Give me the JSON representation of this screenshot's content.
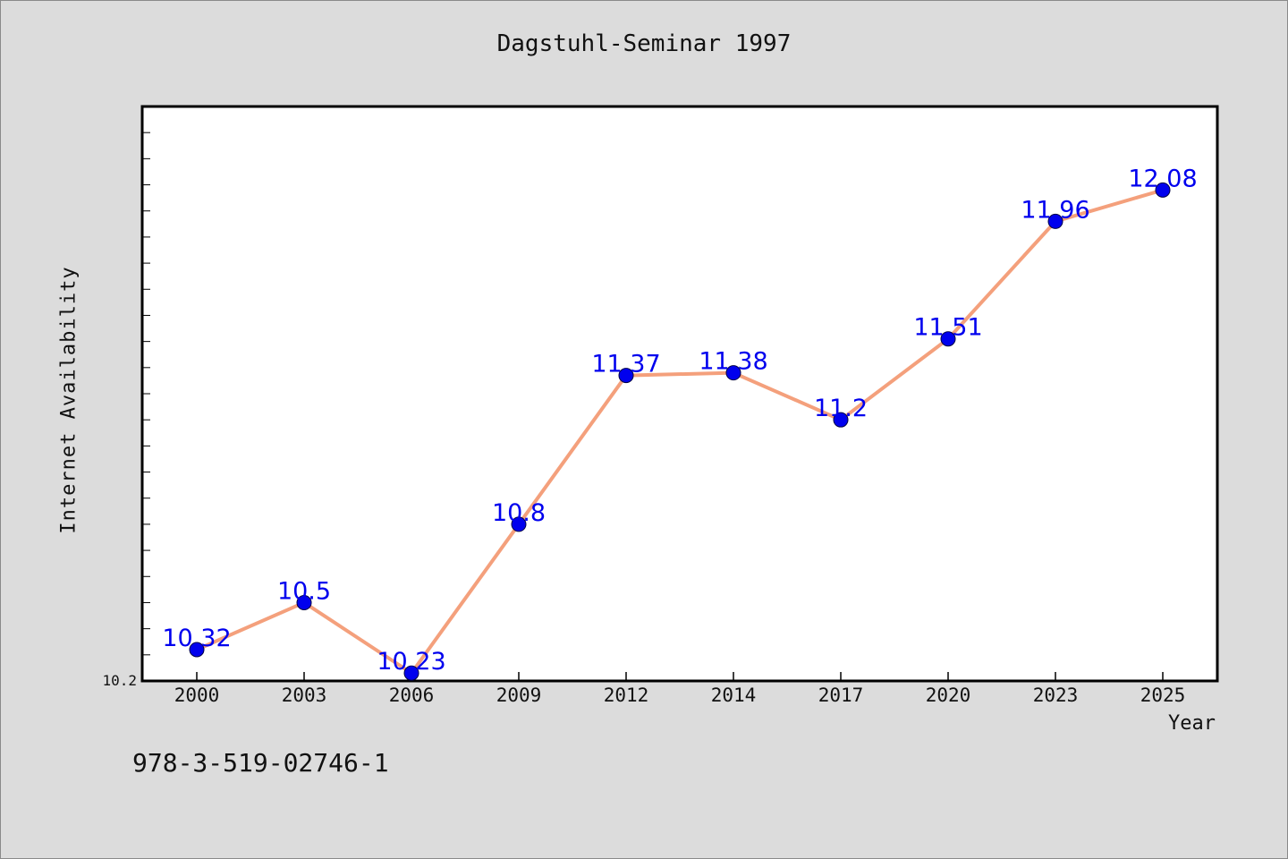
{
  "page": {
    "background": "#dcdcdc",
    "isbn": "978-3-519-02746-1"
  },
  "chart_data": {
    "type": "line",
    "title": "Dagstuhl-Seminar 1997",
    "xlabel": "Year",
    "ylabel": "Internet Availability",
    "categories": [
      "2000",
      "2003",
      "2006",
      "2009",
      "2012",
      "2014",
      "2017",
      "2020",
      "2023",
      "2025"
    ],
    "series": [
      {
        "values": [
          10.32,
          10.5,
          10.23,
          10.8,
          11.37,
          11.38,
          11.2,
          11.51,
          11.96,
          12.08
        ],
        "line_color": "#f4a07c",
        "marker_color": "#0000ee",
        "label_color": "#0000ee"
      }
    ],
    "data_labels": [
      "10.32",
      "10.5",
      "10.23",
      "10.8",
      "11.37",
      "11.38",
      "11.2",
      "11.51",
      "11.96",
      "12.08"
    ],
    "ylim": [
      10.2,
      12.4
    ],
    "y_tick_label": "10.2",
    "grid": false,
    "legend": "none"
  }
}
